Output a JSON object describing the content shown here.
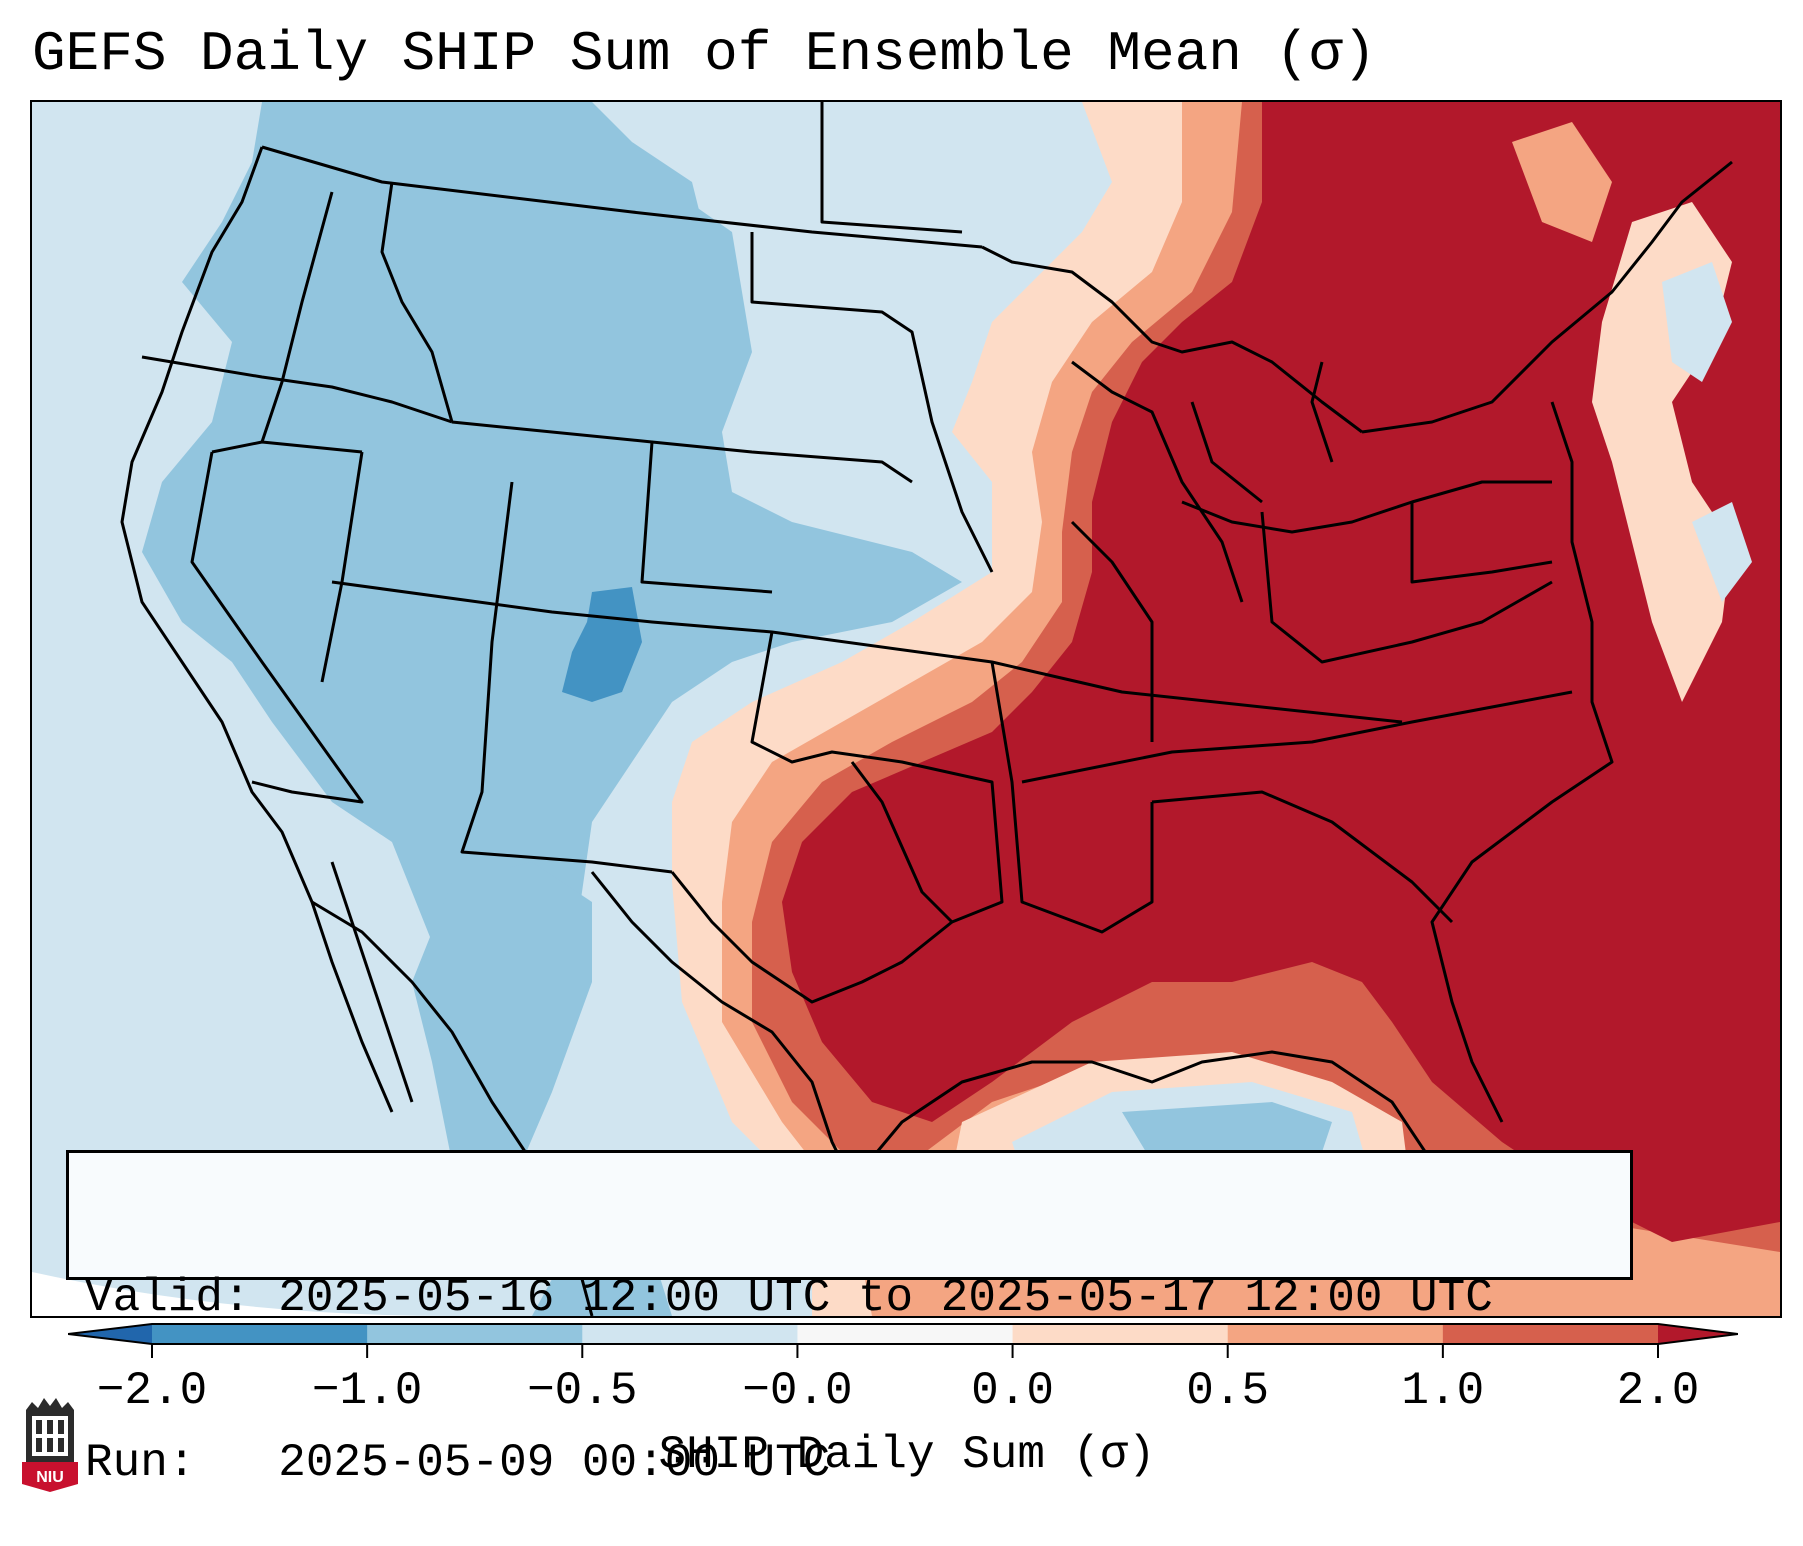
{
  "title": "GEFS Daily SHIP Sum of Ensemble Mean (σ)",
  "info": {
    "valid_label": "Valid:",
    "valid_value": "2025-05-16 12:00 UTC to 2025-05-17 12:00 UTC",
    "run_label": "Run:",
    "run_value": "2025-05-09 00:00 UTC"
  },
  "colorbar": {
    "label": "SHIP Daily Sum (σ)",
    "ticks": [
      "−2.0",
      "−1.0",
      "−0.5",
      "−0.0",
      "0.0",
      "0.5",
      "1.0",
      "2.0"
    ],
    "bins": [
      {
        "from": "-2.0",
        "to": "-1.0",
        "color": "#4393c3"
      },
      {
        "from": "-1.0",
        "to": "-0.5",
        "color": "#92c5de"
      },
      {
        "from": "-0.5",
        "to": "-0.0",
        "color": "#d1e5f0"
      },
      {
        "from": "-0.0",
        "to": "0.0",
        "color": "#f7f7f7"
      },
      {
        "from": "0.0",
        "to": "0.5",
        "color": "#fddbc7"
      },
      {
        "from": "0.5",
        "to": "1.0",
        "color": "#f4a582"
      },
      {
        "from": "1.0",
        "to": "2.0",
        "color": "#d6604d"
      }
    ],
    "under_color": "#2166ac",
    "over_color": "#b2182b"
  },
  "logo": {
    "text": "NIU"
  }
}
